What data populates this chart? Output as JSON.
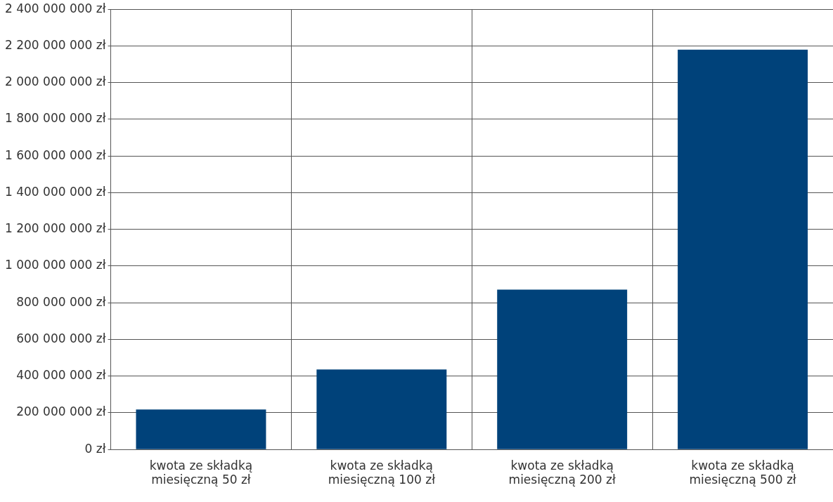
{
  "chart_data": {
    "type": "bar",
    "categories": [
      "kwota ze składką miesięczną 50 zł",
      "kwota ze składką miesięczną 100 zł",
      "kwota ze składką miesięczną 200 zł",
      "kwota ze składką miesięczną 500 zł"
    ],
    "values": [
      218000000,
      436000000,
      872000000,
      2180000000
    ],
    "color": "#00427a",
    "ylim": [
      0,
      2400000000
    ],
    "yticks": [
      {
        "value": 0,
        "label": "0 zł"
      },
      {
        "value": 200000000,
        "label": "200 000 000 zł"
      },
      {
        "value": 400000000,
        "label": "400 000 000 zł"
      },
      {
        "value": 600000000,
        "label": "600 000 000 zł"
      },
      {
        "value": 800000000,
        "label": "800 000 000 zł"
      },
      {
        "value": 1000000000,
        "label": "1 000 000 000 zł"
      },
      {
        "value": 1200000000,
        "label": "1 200 000 000 zł"
      },
      {
        "value": 1400000000,
        "label": "1 400 000 000 zł"
      },
      {
        "value": 1600000000,
        "label": "1 600 000 000 zł"
      },
      {
        "value": 1800000000,
        "label": "1 800 000 000 zł"
      },
      {
        "value": 2000000000,
        "label": "2 000 000 000 zł"
      },
      {
        "value": 2200000000,
        "label": "2 200 000 000 zł"
      },
      {
        "value": 2400000000,
        "label": "2 400 000 000 zł"
      }
    ],
    "grid": true,
    "legend": false
  }
}
